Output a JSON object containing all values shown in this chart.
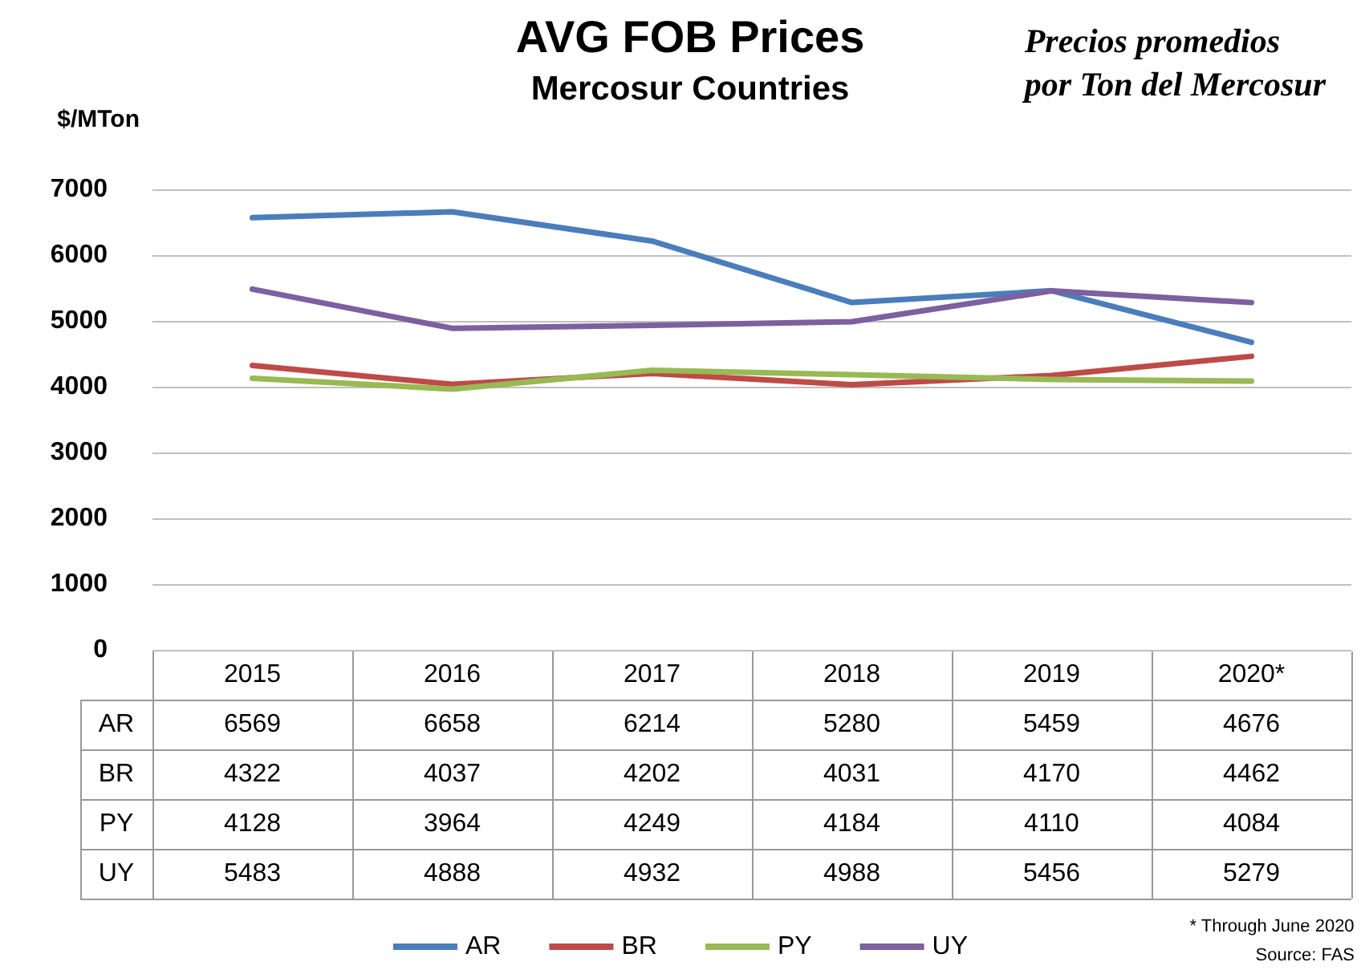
{
  "chart_data": {
    "type": "line",
    "title": "AVG FOB Prices",
    "subtitle": "Mercosur Countries",
    "ylabel": "$/MTon",
    "annotations": [
      "Precios promedios\npor Ton del Mercosur",
      "* Through June 2020",
      "Source: FAS"
    ],
    "categories": [
      "2015",
      "2016",
      "2017",
      "2018",
      "2019",
      "2020*"
    ],
    "series": [
      {
        "name": "AR",
        "color": "#4a7ebb",
        "values": [
          6569,
          6658,
          6214,
          5280,
          5459,
          4676
        ]
      },
      {
        "name": "BR",
        "color": "#be4b48",
        "values": [
          4322,
          4037,
          4202,
          4031,
          4170,
          4462
        ]
      },
      {
        "name": "PY",
        "color": "#98b954",
        "values": [
          4128,
          3964,
          4249,
          4184,
          4110,
          4084
        ]
      },
      {
        "name": "UY",
        "color": "#7d60a0",
        "values": [
          5483,
          4888,
          4932,
          4988,
          5456,
          5279
        ]
      }
    ],
    "ylim": [
      0,
      7000
    ],
    "yticks": [
      0,
      1000,
      2000,
      3000,
      4000,
      5000,
      6000,
      7000
    ],
    "grid": "y",
    "legend": "bottom",
    "marker": "none",
    "line_style": "solid",
    "data_labels": true
  }
}
